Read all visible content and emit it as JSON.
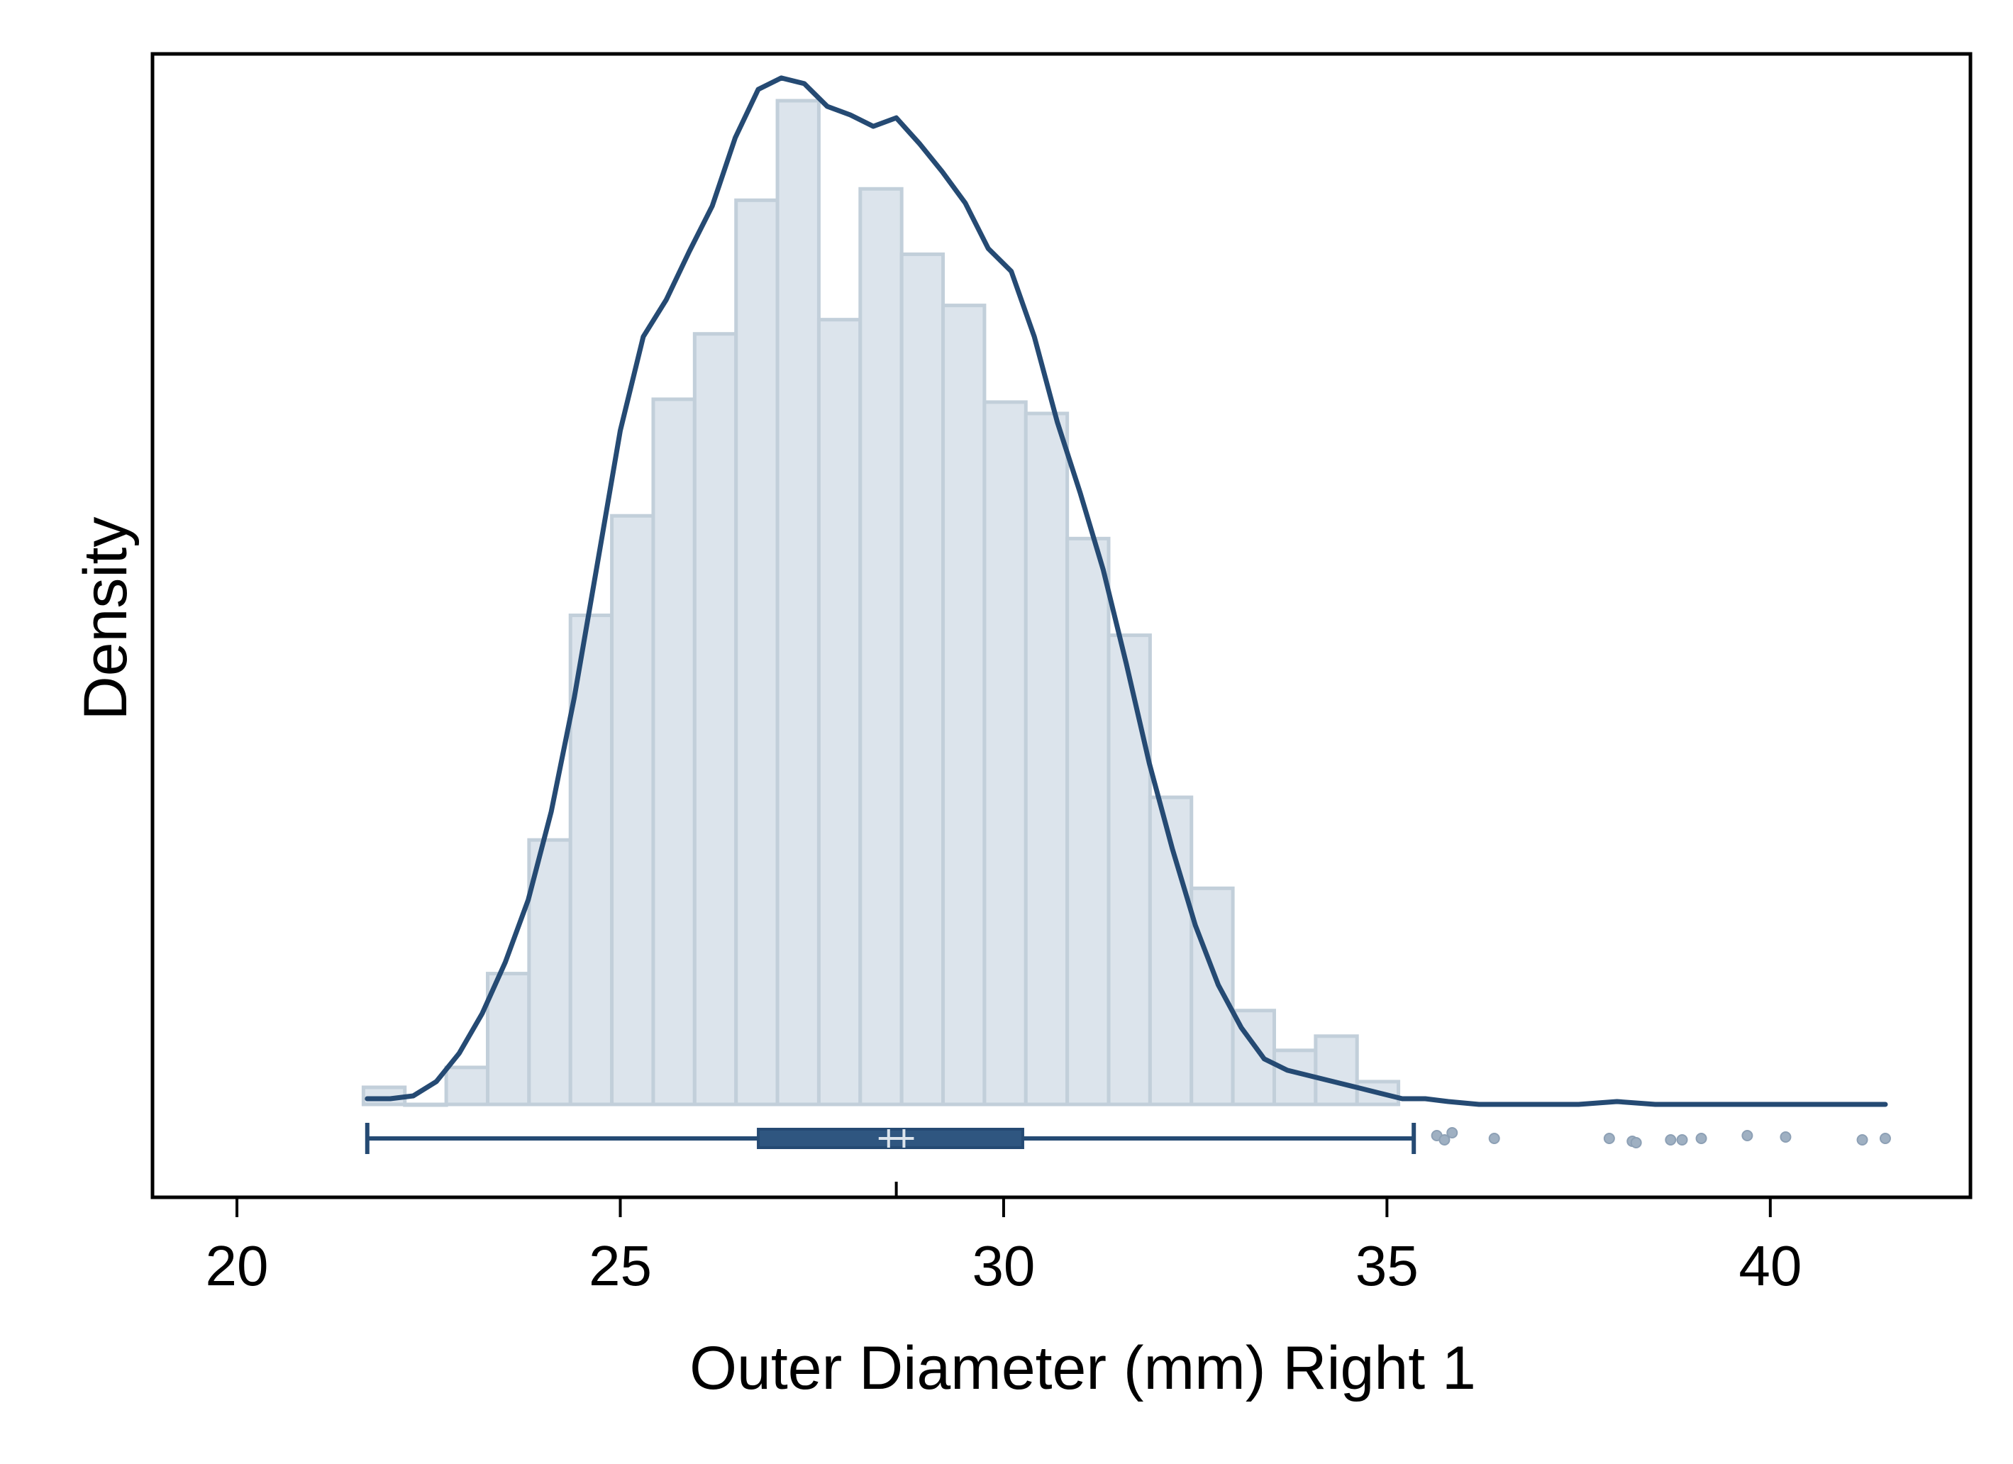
{
  "chart_data": {
    "type": "bar",
    "title": "",
    "xlabel": "Outer Diameter (mm) Right 1",
    "ylabel": "Density",
    "xlim": [
      19.5,
      42
    ],
    "xticks": [
      "20",
      "25",
      "30",
      "35",
      "40"
    ],
    "yticks": [],
    "grid": false,
    "colors": {
      "bar_fill": "#dce4ec",
      "bar_edge": "#c2cfda",
      "line": "#254a73",
      "box": "#2f5680",
      "outlier": "#9fb0c2",
      "frame": "#000000"
    },
    "histogram": {
      "bin_width": 0.54,
      "bins": [
        {
          "x_start": 21.65,
          "density": 0.006
        },
        {
          "x_start": 22.19,
          "density": 0.0
        },
        {
          "x_start": 22.73,
          "density": 0.013
        },
        {
          "x_start": 23.27,
          "density": 0.046
        },
        {
          "x_start": 23.81,
          "density": 0.093
        },
        {
          "x_start": 24.35,
          "density": 0.172
        },
        {
          "x_start": 24.89,
          "density": 0.207
        },
        {
          "x_start": 25.43,
          "density": 0.248
        },
        {
          "x_start": 25.97,
          "density": 0.271
        },
        {
          "x_start": 26.51,
          "density": 0.318
        },
        {
          "x_start": 27.05,
          "density": 0.353
        },
        {
          "x_start": 27.59,
          "density": 0.276
        },
        {
          "x_start": 28.13,
          "density": 0.322
        },
        {
          "x_start": 28.67,
          "density": 0.299
        },
        {
          "x_start": 29.21,
          "density": 0.281
        },
        {
          "x_start": 29.75,
          "density": 0.247
        },
        {
          "x_start": 30.29,
          "density": 0.243
        },
        {
          "x_start": 30.83,
          "density": 0.199
        },
        {
          "x_start": 31.37,
          "density": 0.165
        },
        {
          "x_start": 31.91,
          "density": 0.108
        },
        {
          "x_start": 32.45,
          "density": 0.076
        },
        {
          "x_start": 32.99,
          "density": 0.033
        },
        {
          "x_start": 33.53,
          "density": 0.019
        },
        {
          "x_start": 34.07,
          "density": 0.024
        },
        {
          "x_start": 34.61,
          "density": 0.008
        }
      ]
    },
    "kde": {
      "x": [
        21.7,
        22.0,
        22.3,
        22.6,
        22.9,
        23.2,
        23.5,
        23.8,
        24.1,
        24.4,
        24.7,
        25.0,
        25.3,
        25.6,
        25.9,
        26.2,
        26.5,
        26.8,
        27.1,
        27.4,
        27.7,
        28.0,
        28.3,
        28.6,
        28.9,
        29.2,
        29.5,
        29.8,
        30.1,
        30.4,
        30.7,
        31.0,
        31.3,
        31.6,
        31.9,
        32.2,
        32.5,
        32.8,
        33.1,
        33.4,
        33.7,
        34.0,
        34.3,
        34.6,
        34.9,
        35.2,
        35.5,
        35.8,
        36.2,
        36.6,
        37.0,
        37.5,
        38.0,
        38.5,
        39.0,
        39.5,
        40.0,
        40.5,
        41.0,
        41.5
      ],
      "y": [
        0.002,
        0.002,
        0.003,
        0.008,
        0.018,
        0.032,
        0.05,
        0.072,
        0.103,
        0.143,
        0.19,
        0.237,
        0.27,
        0.283,
        0.3,
        0.316,
        0.34,
        0.357,
        0.361,
        0.359,
        0.351,
        0.348,
        0.344,
        0.347,
        0.338,
        0.328,
        0.317,
        0.301,
        0.293,
        0.27,
        0.24,
        0.215,
        0.188,
        0.155,
        0.12,
        0.09,
        0.063,
        0.042,
        0.027,
        0.016,
        0.012,
        0.01,
        0.008,
        0.006,
        0.004,
        0.002,
        0.002,
        0.001,
        0.0,
        0.0,
        0.0,
        0.0,
        0.001,
        0.0,
        0.0,
        0.0,
        0.0,
        0.0,
        0.0,
        0.0
      ]
    },
    "boxplot": {
      "whisker_low": 21.7,
      "q1": 26.8,
      "median": 28.5,
      "mean": 28.7,
      "q3": 30.25,
      "whisker_high": 35.35,
      "outliers": [
        35.65,
        35.75,
        35.85,
        36.4,
        37.9,
        38.2,
        38.25,
        38.7,
        38.85,
        39.1,
        39.7,
        40.2,
        41.2,
        41.5
      ]
    },
    "x_marker": 28.6
  }
}
